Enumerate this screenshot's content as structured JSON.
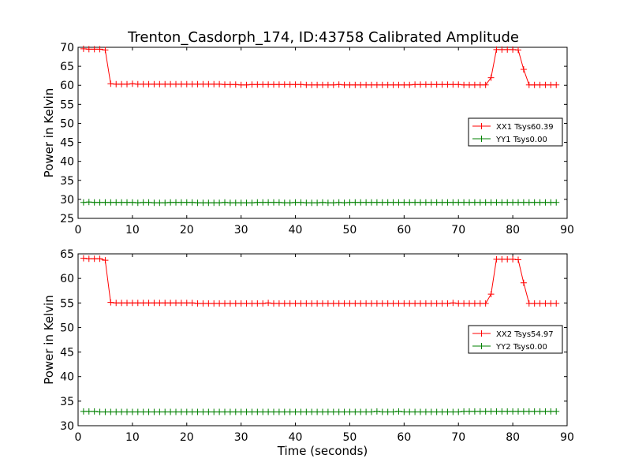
{
  "title": "Trenton_Casdorph_174, ID:43758 Calibrated Amplitude",
  "colors": {
    "red": "#ff0000",
    "green": "#008000",
    "axes": "#000000"
  },
  "chart_data": [
    {
      "type": "line",
      "ylabel": "Power in Kelvin",
      "xlabel": "",
      "xlim": [
        0,
        90
      ],
      "ylim": [
        25,
        70
      ],
      "xticks": [
        0,
        10,
        20,
        30,
        40,
        50,
        60,
        70,
        80,
        90
      ],
      "yticks": [
        25,
        30,
        35,
        40,
        45,
        50,
        55,
        60,
        65,
        70
      ],
      "legend_position": "right",
      "x": [
        1,
        2,
        3,
        4,
        5,
        6,
        7,
        8,
        9,
        10,
        11,
        12,
        13,
        14,
        15,
        16,
        17,
        18,
        19,
        20,
        21,
        22,
        23,
        24,
        25,
        26,
        27,
        28,
        29,
        30,
        31,
        32,
        33,
        34,
        35,
        36,
        37,
        38,
        39,
        40,
        41,
        42,
        43,
        44,
        45,
        46,
        47,
        48,
        49,
        50,
        51,
        52,
        53,
        54,
        55,
        56,
        57,
        58,
        59,
        60,
        61,
        62,
        63,
        64,
        65,
        66,
        67,
        68,
        69,
        70,
        71,
        72,
        73,
        74,
        75,
        76,
        77,
        78,
        79,
        80,
        81,
        82,
        83,
        84,
        85,
        86,
        87,
        88
      ],
      "series": [
        {
          "name": "XX1 Tsys60.39",
          "color": "#ff0000",
          "values": [
            69.6,
            69.5,
            69.5,
            69.5,
            69.3,
            60.4,
            60.3,
            60.3,
            60.3,
            60.4,
            60.3,
            60.3,
            60.3,
            60.3,
            60.3,
            60.3,
            60.3,
            60.3,
            60.3,
            60.3,
            60.3,
            60.3,
            60.3,
            60.3,
            60.3,
            60.3,
            60.2,
            60.2,
            60.2,
            60.1,
            60.1,
            60.2,
            60.2,
            60.2,
            60.2,
            60.2,
            60.2,
            60.2,
            60.2,
            60.2,
            60.2,
            60.1,
            60.1,
            60.1,
            60.1,
            60.1,
            60.1,
            60.2,
            60.1,
            60.1,
            60.1,
            60.1,
            60.1,
            60.1,
            60.1,
            60.1,
            60.1,
            60.1,
            60.1,
            60.1,
            60.1,
            60.2,
            60.2,
            60.2,
            60.2,
            60.2,
            60.2,
            60.2,
            60.2,
            60.2,
            60.1,
            60.1,
            60.1,
            60.1,
            60.1,
            62.0,
            69.4,
            69.4,
            69.4,
            69.4,
            69.3,
            64.2,
            60.1,
            60.1,
            60.1,
            60.1,
            60.1,
            60.1
          ]
        },
        {
          "name": "YY1 Tsys0.00",
          "color": "#008000",
          "values": [
            29.2,
            29.3,
            29.2,
            29.2,
            29.2,
            29.2,
            29.2,
            29.2,
            29.2,
            29.2,
            29.1,
            29.2,
            29.2,
            29.1,
            29.1,
            29.1,
            29.2,
            29.2,
            29.2,
            29.2,
            29.2,
            29.1,
            29.1,
            29.1,
            29.1,
            29.1,
            29.2,
            29.1,
            29.1,
            29.1,
            29.1,
            29.1,
            29.2,
            29.2,
            29.2,
            29.2,
            29.2,
            29.1,
            29.1,
            29.2,
            29.2,
            29.1,
            29.1,
            29.1,
            29.2,
            29.1,
            29.1,
            29.2,
            29.1,
            29.2,
            29.2,
            29.2,
            29.2,
            29.2,
            29.2,
            29.2,
            29.2,
            29.2,
            29.2,
            29.2,
            29.2,
            29.2,
            29.2,
            29.2,
            29.2,
            29.2,
            29.2,
            29.2,
            29.2,
            29.2,
            29.2,
            29.2,
            29.2,
            29.2,
            29.2,
            29.2,
            29.2,
            29.2,
            29.2,
            29.2,
            29.2,
            29.2,
            29.2,
            29.2,
            29.2,
            29.2,
            29.2,
            29.2
          ]
        }
      ]
    },
    {
      "type": "line",
      "ylabel": "Power in Kelvin",
      "xlabel": "Time (seconds)",
      "xlim": [
        0,
        90
      ],
      "ylim": [
        30,
        65
      ],
      "xticks": [
        0,
        10,
        20,
        30,
        40,
        50,
        60,
        70,
        80,
        90
      ],
      "yticks": [
        30,
        35,
        40,
        45,
        50,
        55,
        60,
        65
      ],
      "legend_position": "right",
      "x": [
        1,
        2,
        3,
        4,
        5,
        6,
        7,
        8,
        9,
        10,
        11,
        12,
        13,
        14,
        15,
        16,
        17,
        18,
        19,
        20,
        21,
        22,
        23,
        24,
        25,
        26,
        27,
        28,
        29,
        30,
        31,
        32,
        33,
        34,
        35,
        36,
        37,
        38,
        39,
        40,
        41,
        42,
        43,
        44,
        45,
        46,
        47,
        48,
        49,
        50,
        51,
        52,
        53,
        54,
        55,
        56,
        57,
        58,
        59,
        60,
        61,
        62,
        63,
        64,
        65,
        66,
        67,
        68,
        69,
        70,
        71,
        72,
        73,
        74,
        75,
        76,
        77,
        78,
        79,
        80,
        81,
        82,
        83,
        84,
        85,
        86,
        87,
        88
      ],
      "series": [
        {
          "name": "XX2 Tsys54.97",
          "color": "#ff0000",
          "values": [
            64.1,
            64.0,
            64.0,
            64.0,
            63.7,
            55.1,
            55.0,
            55.0,
            55.0,
            55.0,
            55.0,
            55.0,
            55.0,
            55.0,
            55.0,
            55.0,
            55.0,
            55.0,
            55.0,
            55.0,
            55.0,
            54.9,
            54.9,
            54.9,
            54.9,
            54.9,
            54.9,
            54.9,
            54.9,
            54.9,
            54.9,
            54.9,
            54.9,
            54.9,
            55.0,
            54.9,
            54.9,
            54.9,
            54.9,
            54.9,
            54.9,
            54.9,
            54.9,
            54.9,
            54.9,
            54.9,
            54.9,
            54.9,
            54.9,
            54.9,
            54.9,
            54.9,
            54.9,
            54.9,
            54.9,
            54.9,
            54.9,
            54.9,
            54.9,
            54.9,
            54.9,
            54.9,
            54.9,
            54.9,
            54.9,
            54.9,
            54.9,
            54.9,
            55.0,
            54.9,
            54.9,
            54.9,
            54.9,
            54.9,
            54.9,
            56.8,
            63.9,
            63.9,
            63.9,
            63.9,
            63.8,
            59.1,
            54.9,
            54.9,
            54.9,
            54.9,
            54.9,
            54.9
          ]
        },
        {
          "name": "YY2 Tsys0.00",
          "color": "#008000",
          "values": [
            32.9,
            32.9,
            32.9,
            32.8,
            32.8,
            32.8,
            32.8,
            32.8,
            32.8,
            32.8,
            32.8,
            32.8,
            32.8,
            32.8,
            32.8,
            32.8,
            32.8,
            32.8,
            32.8,
            32.8,
            32.8,
            32.8,
            32.8,
            32.8,
            32.8,
            32.8,
            32.8,
            32.8,
            32.8,
            32.8,
            32.8,
            32.8,
            32.8,
            32.8,
            32.8,
            32.8,
            32.8,
            32.8,
            32.8,
            32.8,
            32.8,
            32.8,
            32.8,
            32.8,
            32.8,
            32.8,
            32.8,
            32.8,
            32.8,
            32.8,
            32.8,
            32.8,
            32.8,
            32.8,
            32.9,
            32.8,
            32.8,
            32.8,
            32.9,
            32.8,
            32.8,
            32.8,
            32.8,
            32.8,
            32.8,
            32.8,
            32.8,
            32.8,
            32.8,
            32.8,
            32.9,
            32.9,
            32.9,
            32.9,
            32.9,
            32.9,
            32.9,
            32.9,
            32.9,
            32.9,
            32.9,
            32.9,
            32.9,
            32.9,
            32.9,
            32.9,
            32.9,
            32.9
          ]
        }
      ]
    }
  ]
}
